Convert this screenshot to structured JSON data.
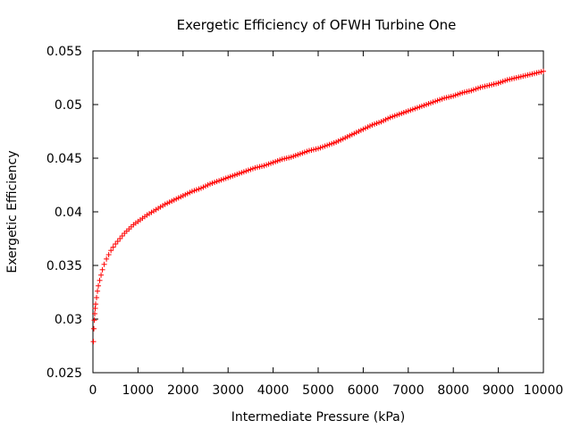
{
  "chart_data": {
    "type": "scatter",
    "title": "Exergetic Efficiency of OFWH Turbine One",
    "xlabel": "Intermediate Pressure (kPa)",
    "ylabel": "Exergetic Efficiency",
    "xlim": [
      0,
      10000
    ],
    "ylim": [
      0.025,
      0.055
    ],
    "xticks": [
      "0",
      "1000",
      "2000",
      "3000",
      "4000",
      "5000",
      "6000",
      "7000",
      "8000",
      "9000",
      "10000"
    ],
    "yticks": [
      "0.025",
      "0.03",
      "0.035",
      "0.04",
      "0.045",
      "0.05",
      "0.055"
    ],
    "grid": false,
    "legend": "none",
    "marker": "plus",
    "color": "#ff0000",
    "series": [
      {
        "x": [
          10,
          20,
          30,
          40,
          50,
          60,
          80,
          100,
          120,
          150,
          180,
          210,
          250,
          300,
          350,
          400,
          450,
          500,
          600,
          700,
          800,
          900,
          1000,
          1200,
          1400,
          1600,
          1800,
          2000,
          2200,
          2400,
          2600,
          2800,
          3000,
          3200,
          3400,
          3600,
          3800,
          4000,
          4200,
          4400,
          4600,
          4800,
          5000,
          5200,
          5400,
          5600,
          5800,
          6000,
          6200,
          6400,
          6600,
          6800,
          7000,
          7200,
          7400,
          7600,
          7800,
          8000,
          8200,
          8400,
          8600,
          8800,
          9000,
          9200,
          9400,
          9600,
          9800,
          10000
        ],
        "y": [
          0.0279,
          0.0291,
          0.0299,
          0.0305,
          0.031,
          0.0314,
          0.032,
          0.0326,
          0.0331,
          0.0336,
          0.0341,
          0.0346,
          0.0351,
          0.0356,
          0.036,
          0.0364,
          0.0367,
          0.037,
          0.0375,
          0.038,
          0.0384,
          0.0388,
          0.0391,
          0.0397,
          0.0402,
          0.0407,
          0.0411,
          0.0415,
          0.0419,
          0.0422,
          0.0426,
          0.0429,
          0.0432,
          0.0435,
          0.0438,
          0.0441,
          0.0443,
          0.0446,
          0.0449,
          0.0451,
          0.0454,
          0.0457,
          0.0459,
          0.0462,
          0.0465,
          0.0469,
          0.0473,
          0.0477,
          0.0481,
          0.0484,
          0.0488,
          0.0491,
          0.0494,
          0.0497,
          0.05,
          0.0503,
          0.0506,
          0.0508,
          0.0511,
          0.0513,
          0.0516,
          0.0518,
          0.052,
          0.0523,
          0.0525,
          0.0527,
          0.0529,
          0.0531
        ]
      }
    ]
  }
}
